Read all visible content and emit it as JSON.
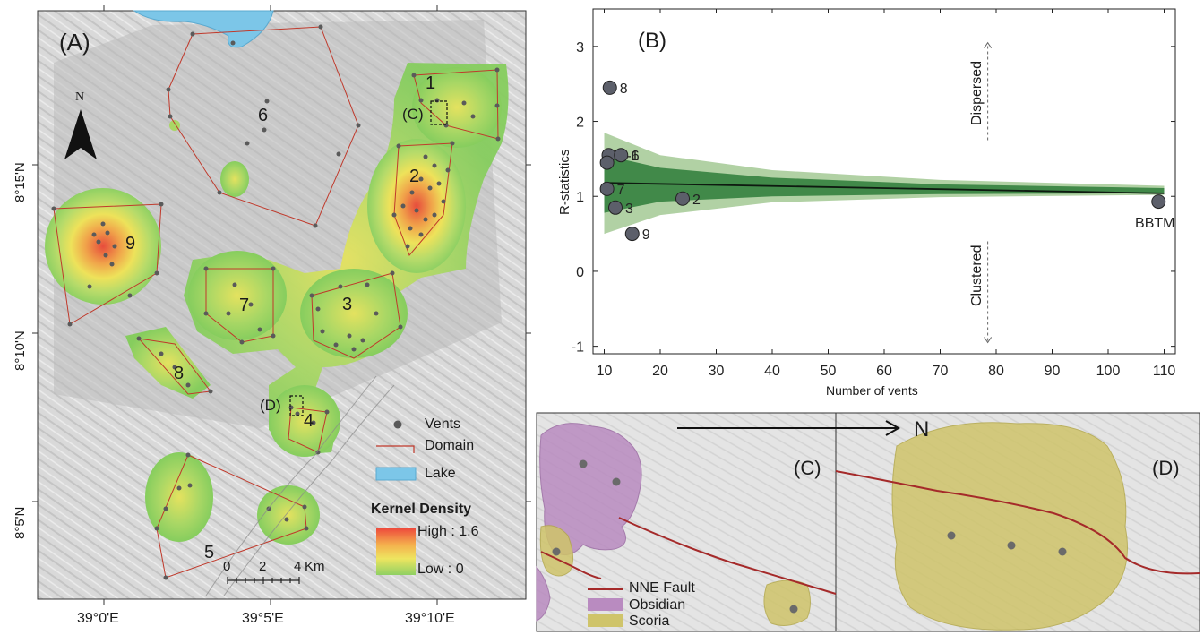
{
  "panel_a": {
    "label": "(A)",
    "north_label": "N",
    "lat_labels": [
      "8°15'N",
      "8°10'N",
      "8°5'N"
    ],
    "lon_labels": [
      "39°0'E",
      "39°5'E",
      "39°10'E"
    ],
    "domain_numbers": [
      "1",
      "2",
      "3",
      "4",
      "5",
      "6",
      "7",
      "8",
      "9"
    ],
    "inset_c_label": "(C)",
    "inset_d_label": "(D)",
    "scale": {
      "ticks": [
        "0",
        "2",
        "4"
      ],
      "unit": "Km"
    },
    "legend": {
      "vents": "Vents",
      "domain": "Domain",
      "lake": "Lake",
      "kd_title": "Kernel Density",
      "kd_high": "High : 1.6",
      "kd_low": "Low : 0"
    },
    "colors": {
      "lake": "#7cc6e8",
      "domain": "#c0392b",
      "vent": "#5a5a5a"
    }
  },
  "panel_b": {
    "label": "(B)",
    "dispersed": "Dispersed",
    "clustered": "Clustered"
  },
  "chart_data": {
    "type": "scatter",
    "xlabel": "Number of vents",
    "ylabel": "R-statistics",
    "xlim": [
      8,
      112
    ],
    "ylim": [
      -1.1,
      3.5
    ],
    "xticks": [
      10,
      20,
      30,
      40,
      50,
      60,
      70,
      80,
      90,
      100,
      110
    ],
    "yticks": [
      -1,
      0,
      1,
      2,
      3
    ],
    "points": [
      {
        "label": "8",
        "x": 11,
        "y": 2.45
      },
      {
        "label": "4-6",
        "x": 10.8,
        "y": 1.55
      },
      {
        "label": "1",
        "x": 13,
        "y": 1.55
      },
      {
        "label": "",
        "x": 10.5,
        "y": 1.45
      },
      {
        "label": "7",
        "x": 10.5,
        "y": 1.1
      },
      {
        "label": "2",
        "x": 24,
        "y": 0.97
      },
      {
        "label": "3",
        "x": 12,
        "y": 0.85
      },
      {
        "label": "9",
        "x": 15,
        "y": 0.5
      },
      {
        "label": "BBTM",
        "x": 109,
        "y": 0.93
      }
    ],
    "mean_line": {
      "x": [
        10,
        110
      ],
      "y": [
        1.18,
        1.04
      ]
    },
    "envelope_inner": {
      "x": [
        10,
        20,
        40,
        70,
        110
      ],
      "upper": [
        1.55,
        1.38,
        1.25,
        1.16,
        1.11
      ],
      "lower": [
        0.78,
        0.93,
        1.0,
        1.03,
        1.04
      ]
    },
    "envelope_outer": {
      "x": [
        10,
        20,
        40,
        70,
        110
      ],
      "upper": [
        1.85,
        1.55,
        1.35,
        1.22,
        1.14
      ],
      "lower": [
        0.5,
        0.75,
        0.92,
        0.99,
        1.02
      ]
    },
    "colors": {
      "points": "#5c5f6a",
      "inner": "#2e7d3a",
      "outer": "#a9cc9a",
      "line": "#0e1a10"
    }
  },
  "panel_cd": {
    "north_label": "N",
    "label_c": "(C)",
    "label_d": "(D)",
    "legend": {
      "fault": "NNE Fault",
      "obsidian": "Obsidian",
      "scoria": "Scoria"
    },
    "colors": {
      "fault": "#a52a2a",
      "obsidian": "#b98bc0",
      "scoria": "#cfc46a"
    }
  }
}
